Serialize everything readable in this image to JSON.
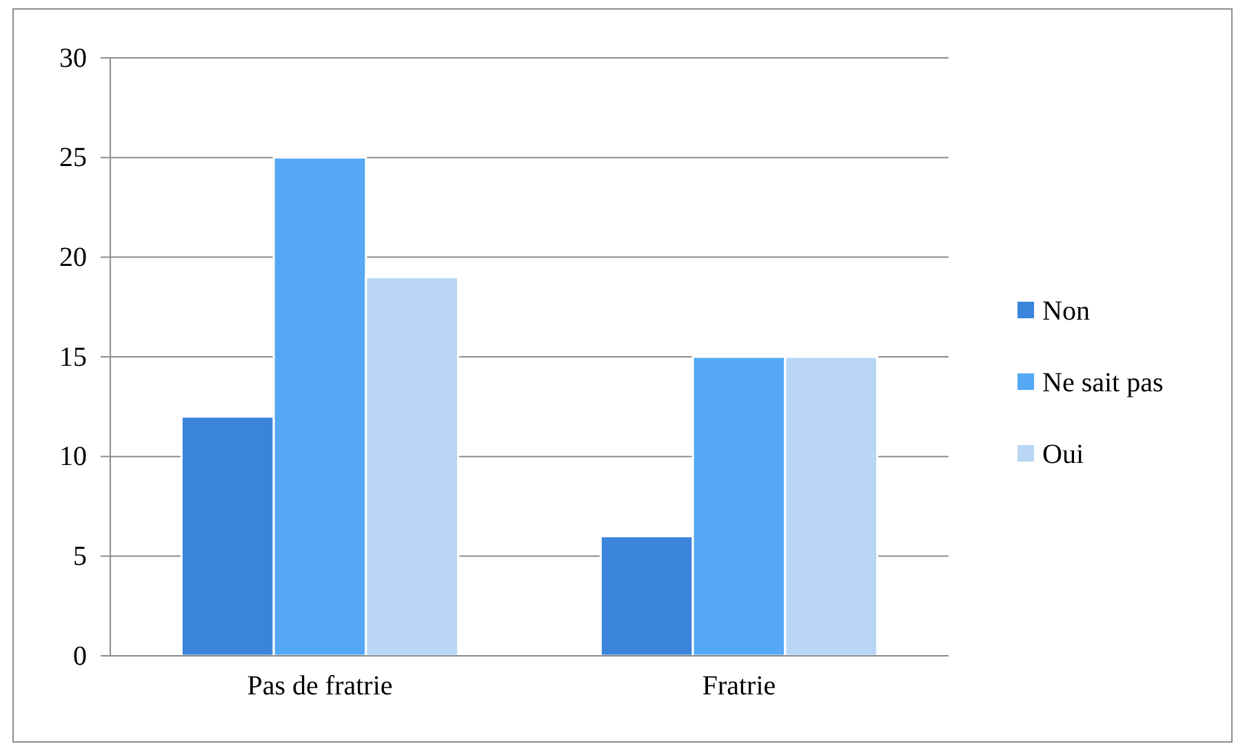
{
  "chart_data": {
    "type": "bar",
    "categories": [
      "Pas de fratrie",
      "Fratrie"
    ],
    "series": [
      {
        "name": "Non",
        "color": "#3a84dc",
        "values": [
          12,
          6
        ]
      },
      {
        "name": "Ne sait pas",
        "color": "#55a8f5",
        "values": [
          25,
          15
        ]
      },
      {
        "name": "Oui",
        "color": "#b9d6f5",
        "values": [
          19,
          15
        ]
      }
    ],
    "ylim": [
      0,
      30
    ],
    "yticks": [
      0,
      5,
      10,
      15,
      20,
      25,
      30
    ],
    "grid": "y",
    "legend": "right"
  }
}
